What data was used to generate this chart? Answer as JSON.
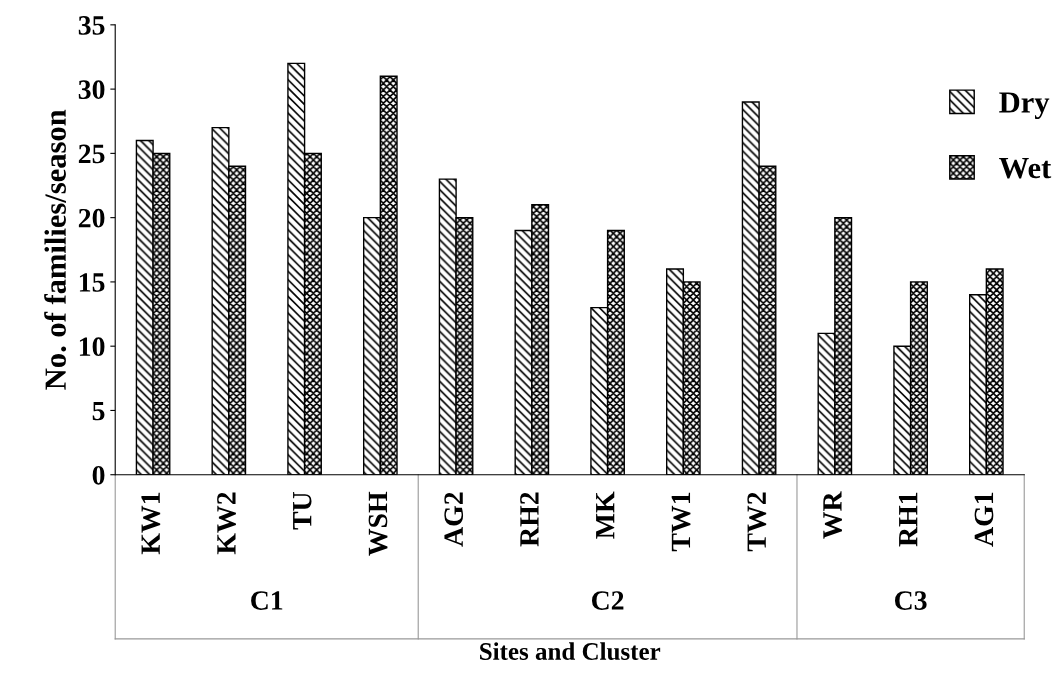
{
  "chart_data": {
    "type": "bar",
    "xlabel": "Sites and Cluster",
    "ylabel": "No. of families/season",
    "categories": [
      "KW1",
      "KW2",
      "TU",
      "WSH",
      "AG2",
      "RH2",
      "MK",
      "TW1",
      "TW2",
      "WR",
      "RH1",
      "AG1"
    ],
    "series": [
      {
        "name": "Dry",
        "color": "#000000",
        "values": [
          26,
          27,
          32,
          20,
          23,
          19,
          13,
          16,
          29,
          11,
          10,
          14
        ]
      },
      {
        "name": "Wet",
        "color": "#000000",
        "values": [
          25,
          24,
          25,
          31,
          20,
          21,
          19,
          15,
          24,
          20,
          15,
          16
        ]
      }
    ],
    "ylim": [
      0,
      35
    ],
    "yticks": [
      0,
      5,
      10,
      15,
      20,
      25,
      30,
      35
    ],
    "grid": false,
    "legend": "right",
    "annotations": [
      "C1",
      "C2",
      "C3"
    ]
  }
}
